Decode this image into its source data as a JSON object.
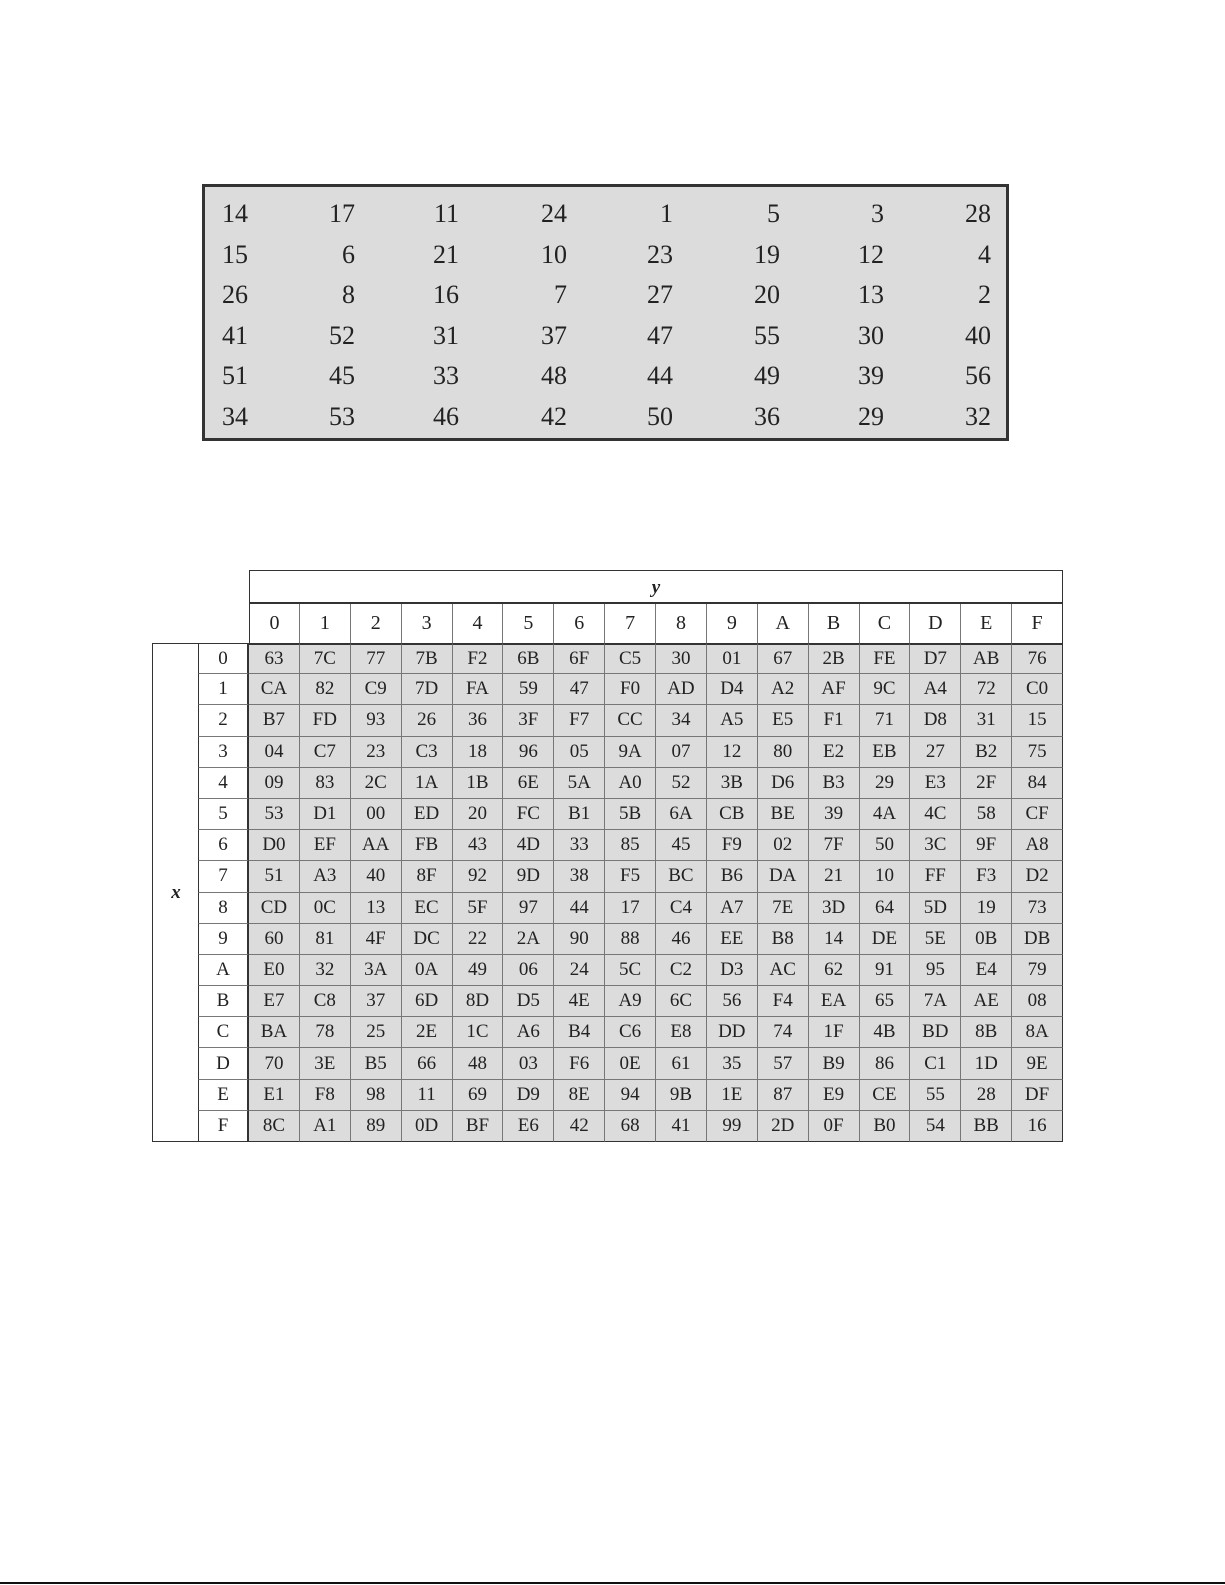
{
  "permutation_table": {
    "rows": [
      [
        14,
        17,
        11,
        24,
        1,
        5,
        3,
        28
      ],
      [
        15,
        6,
        21,
        10,
        23,
        19,
        12,
        4
      ],
      [
        26,
        8,
        16,
        7,
        27,
        20,
        13,
        2
      ],
      [
        41,
        52,
        31,
        37,
        47,
        55,
        30,
        40
      ],
      [
        51,
        45,
        33,
        48,
        44,
        49,
        39,
        56
      ],
      [
        34,
        53,
        46,
        42,
        50,
        36,
        29,
        32
      ]
    ]
  },
  "sbox_table": {
    "column_axis_label": "y",
    "row_axis_label": "x",
    "column_headers": [
      "0",
      "1",
      "2",
      "3",
      "4",
      "5",
      "6",
      "7",
      "8",
      "9",
      "A",
      "B",
      "C",
      "D",
      "E",
      "F"
    ],
    "row_headers": [
      "0",
      "1",
      "2",
      "3",
      "4",
      "5",
      "6",
      "7",
      "8",
      "9",
      "A",
      "B",
      "C",
      "D",
      "E",
      "F"
    ],
    "rows": [
      [
        "63",
        "7C",
        "77",
        "7B",
        "F2",
        "6B",
        "6F",
        "C5",
        "30",
        "01",
        "67",
        "2B",
        "FE",
        "D7",
        "AB",
        "76"
      ],
      [
        "CA",
        "82",
        "C9",
        "7D",
        "FA",
        "59",
        "47",
        "F0",
        "AD",
        "D4",
        "A2",
        "AF",
        "9C",
        "A4",
        "72",
        "C0"
      ],
      [
        "B7",
        "FD",
        "93",
        "26",
        "36",
        "3F",
        "F7",
        "CC",
        "34",
        "A5",
        "E5",
        "F1",
        "71",
        "D8",
        "31",
        "15"
      ],
      [
        "04",
        "C7",
        "23",
        "C3",
        "18",
        "96",
        "05",
        "9A",
        "07",
        "12",
        "80",
        "E2",
        "EB",
        "27",
        "B2",
        "75"
      ],
      [
        "09",
        "83",
        "2C",
        "1A",
        "1B",
        "6E",
        "5A",
        "A0",
        "52",
        "3B",
        "D6",
        "B3",
        "29",
        "E3",
        "2F",
        "84"
      ],
      [
        "53",
        "D1",
        "00",
        "ED",
        "20",
        "FC",
        "B1",
        "5B",
        "6A",
        "CB",
        "BE",
        "39",
        "4A",
        "4C",
        "58",
        "CF"
      ],
      [
        "D0",
        "EF",
        "AA",
        "FB",
        "43",
        "4D",
        "33",
        "85",
        "45",
        "F9",
        "02",
        "7F",
        "50",
        "3C",
        "9F",
        "A8"
      ],
      [
        "51",
        "A3",
        "40",
        "8F",
        "92",
        "9D",
        "38",
        "F5",
        "BC",
        "B6",
        "DA",
        "21",
        "10",
        "FF",
        "F3",
        "D2"
      ],
      [
        "CD",
        "0C",
        "13",
        "EC",
        "5F",
        "97",
        "44",
        "17",
        "C4",
        "A7",
        "7E",
        "3D",
        "64",
        "5D",
        "19",
        "73"
      ],
      [
        "60",
        "81",
        "4F",
        "DC",
        "22",
        "2A",
        "90",
        "88",
        "46",
        "EE",
        "B8",
        "14",
        "DE",
        "5E",
        "0B",
        "DB"
      ],
      [
        "E0",
        "32",
        "3A",
        "0A",
        "49",
        "06",
        "24",
        "5C",
        "C2",
        "D3",
        "AC",
        "62",
        "91",
        "95",
        "E4",
        "79"
      ],
      [
        "E7",
        "C8",
        "37",
        "6D",
        "8D",
        "D5",
        "4E",
        "A9",
        "6C",
        "56",
        "F4",
        "EA",
        "65",
        "7A",
        "AE",
        "08"
      ],
      [
        "BA",
        "78",
        "25",
        "2E",
        "1C",
        "A6",
        "B4",
        "C6",
        "E8",
        "DD",
        "74",
        "1F",
        "4B",
        "BD",
        "8B",
        "8A"
      ],
      [
        "70",
        "3E",
        "B5",
        "66",
        "48",
        "03",
        "F6",
        "0E",
        "61",
        "35",
        "57",
        "B9",
        "86",
        "C1",
        "1D",
        "9E"
      ],
      [
        "E1",
        "F8",
        "98",
        "11",
        "69",
        "D9",
        "8E",
        "94",
        "9B",
        "1E",
        "87",
        "E9",
        "CE",
        "55",
        "28",
        "DF"
      ],
      [
        "8C",
        "A1",
        "89",
        "0D",
        "BF",
        "E6",
        "42",
        "68",
        "41",
        "99",
        "2D",
        "0F",
        "B0",
        "54",
        "BB",
        "16"
      ]
    ]
  },
  "colors": {
    "cell_fill": "#dcdcdc",
    "border": "#333333"
  }
}
